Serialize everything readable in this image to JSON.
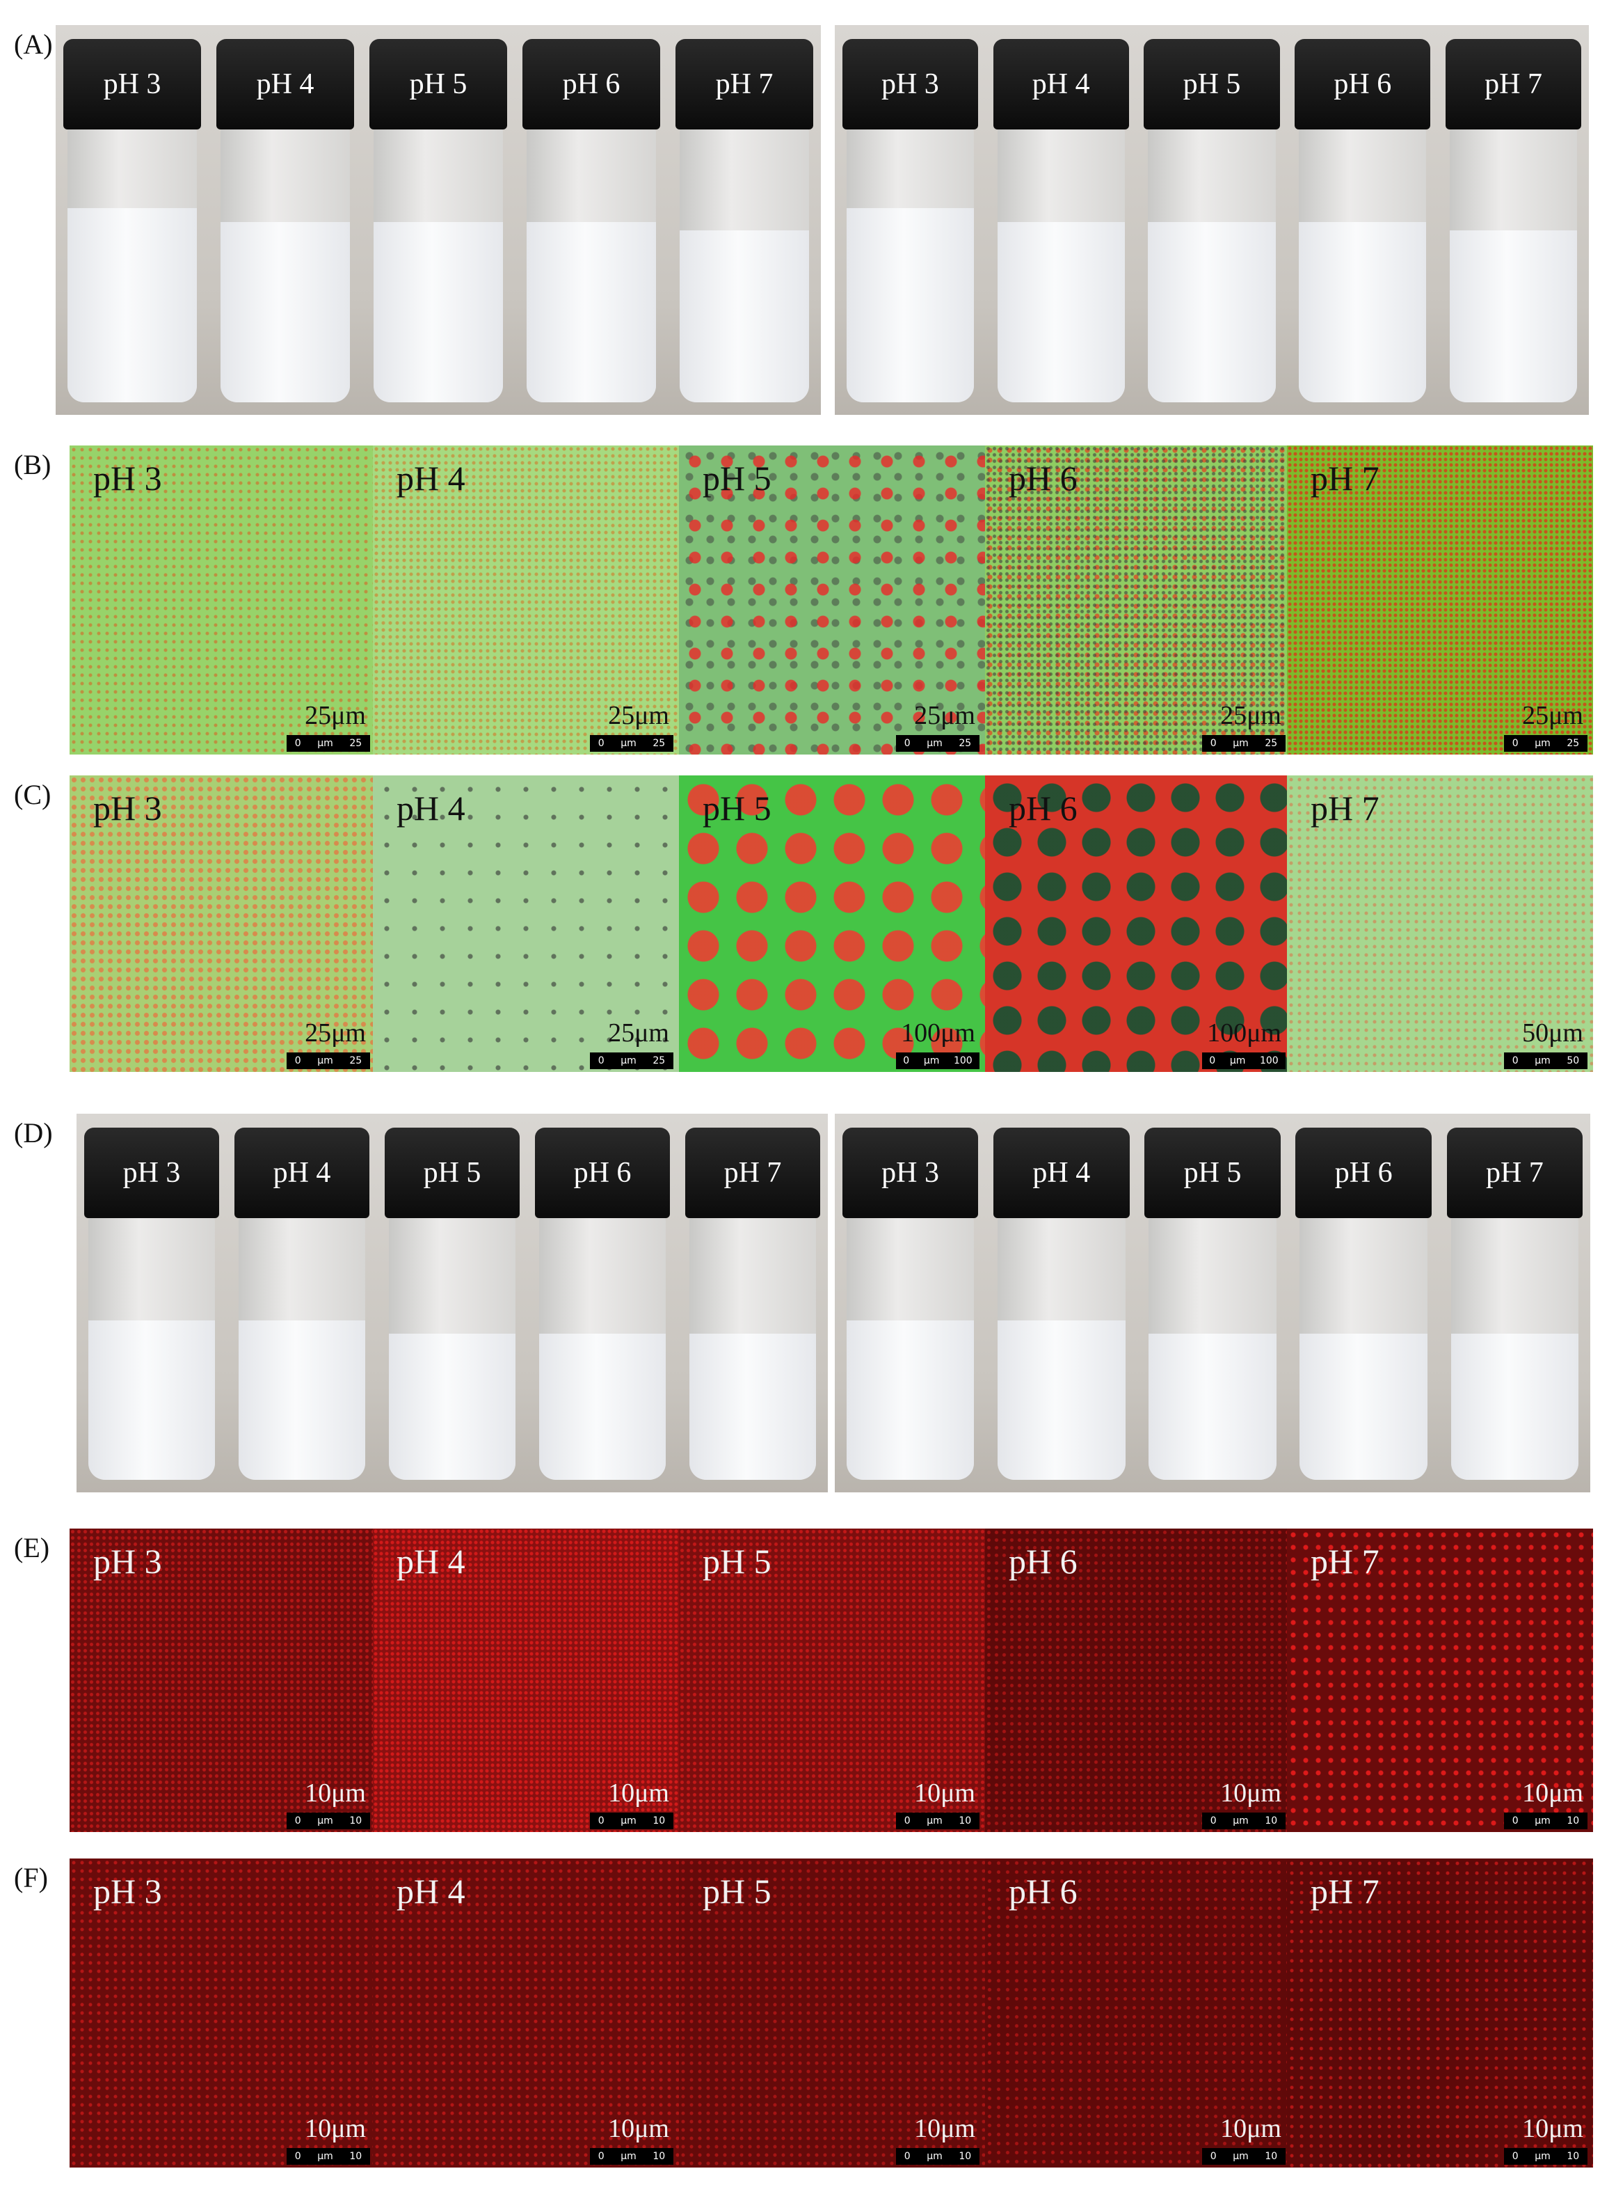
{
  "panels": [
    {
      "label": "(A)",
      "groups": [
        {
          "vials": [
            "pH 3",
            "pH 4",
            "pH 5",
            "pH 6",
            "pH 7"
          ]
        },
        {
          "vials": [
            "pH 3",
            "pH 4",
            "pH 5",
            "pH 6",
            "pH 7"
          ]
        }
      ]
    },
    {
      "label": "(B)",
      "images": [
        {
          "ph": "pH 3",
          "scale": "25μm",
          "bar": [
            "0",
            "μm",
            "25"
          ]
        },
        {
          "ph": "pH 4",
          "scale": "25μm",
          "bar": [
            "0",
            "μm",
            "25"
          ]
        },
        {
          "ph": "pH 5",
          "scale": "25μm",
          "bar": [
            "0",
            "μm",
            "25"
          ]
        },
        {
          "ph": "pH 6",
          "scale": "25μm",
          "bar": [
            "0",
            "μm",
            "25"
          ]
        },
        {
          "ph": "pH 7",
          "scale": "25μm",
          "bar": [
            "0",
            "μm",
            "25"
          ]
        }
      ]
    },
    {
      "label": "(C)",
      "images": [
        {
          "ph": "pH 3",
          "scale": "25μm",
          "bar": [
            "0",
            "μm",
            "25"
          ]
        },
        {
          "ph": "pH 4",
          "scale": "25μm",
          "bar": [
            "0",
            "μm",
            "25"
          ]
        },
        {
          "ph": "pH 5",
          "scale": "100μm",
          "bar": [
            "0",
            "μm",
            "100"
          ]
        },
        {
          "ph": "pH 6",
          "scale": "100μm",
          "bar": [
            "0",
            "μm",
            "100"
          ]
        },
        {
          "ph": "pH 7",
          "scale": "50μm",
          "bar": [
            "0",
            "μm",
            "50"
          ]
        }
      ]
    },
    {
      "label": "(D)",
      "groups": [
        {
          "vials": [
            "pH 3",
            "pH 4",
            "pH 5",
            "pH 6",
            "pH 7"
          ]
        },
        {
          "vials": [
            "pH 3",
            "pH 4",
            "pH 5",
            "pH 6",
            "pH 7"
          ]
        }
      ]
    },
    {
      "label": "(E)",
      "images": [
        {
          "ph": "pH 3",
          "scale": "10μm",
          "bar": [
            "0",
            "μm",
            "10"
          ]
        },
        {
          "ph": "pH 4",
          "scale": "10μm",
          "bar": [
            "0",
            "μm",
            "10"
          ]
        },
        {
          "ph": "pH 5",
          "scale": "10μm",
          "bar": [
            "0",
            "μm",
            "10"
          ]
        },
        {
          "ph": "pH 6",
          "scale": "10μm",
          "bar": [
            "0",
            "μm",
            "10"
          ]
        },
        {
          "ph": "pH 7",
          "scale": "10μm",
          "bar": [
            "0",
            "μm",
            "10"
          ]
        }
      ]
    },
    {
      "label": "(F)",
      "images": [
        {
          "ph": "pH 3",
          "scale": "10μm",
          "bar": [
            "0",
            "μm",
            "10"
          ]
        },
        {
          "ph": "pH 4",
          "scale": "10μm",
          "bar": [
            "0",
            "μm",
            "10"
          ]
        },
        {
          "ph": "pH 5",
          "scale": "10μm",
          "bar": [
            "0",
            "μm",
            "10"
          ]
        },
        {
          "ph": "pH 6",
          "scale": "10μm",
          "bar": [
            "0",
            "μm",
            "10"
          ]
        },
        {
          "ph": "pH 7",
          "scale": "10μm",
          "bar": [
            "0",
            "μm",
            "10"
          ]
        }
      ]
    }
  ]
}
